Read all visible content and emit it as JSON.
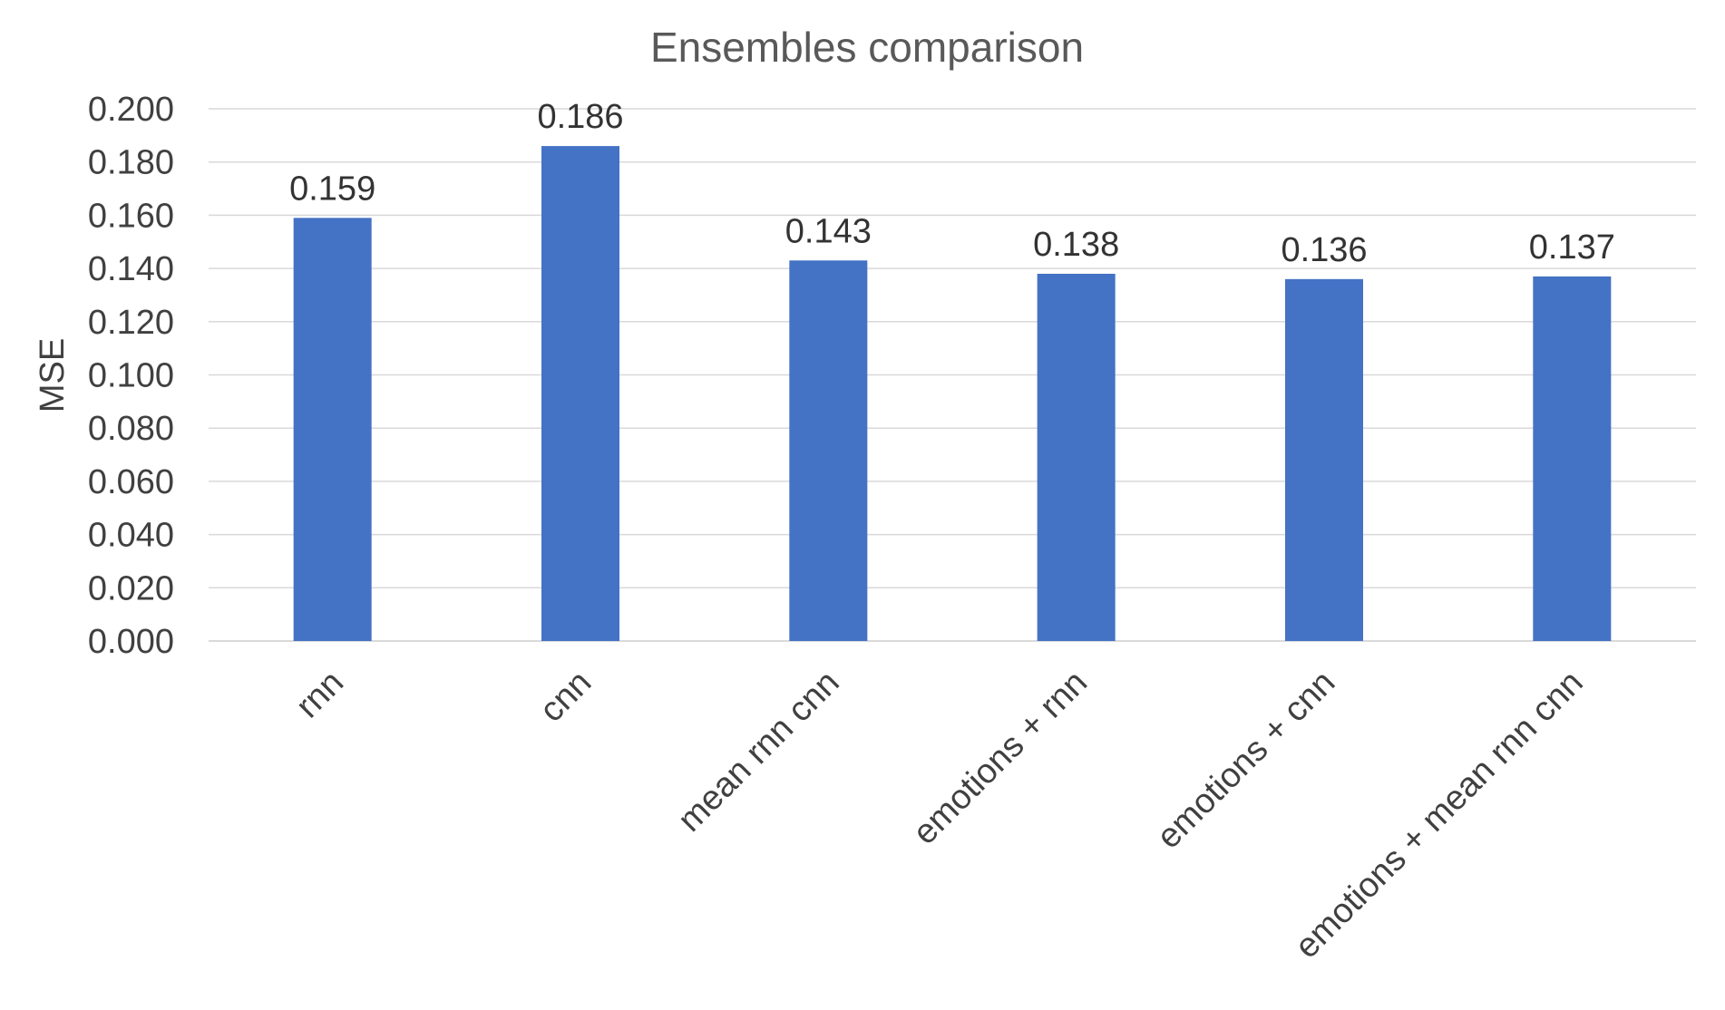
{
  "chart_data": {
    "type": "bar",
    "title": "Ensembles comparison",
    "xlabel": "",
    "ylabel": "MSE",
    "ylim": [
      0,
      0.2
    ],
    "y_ticks": [
      "0.000",
      "0.020",
      "0.040",
      "0.060",
      "0.080",
      "0.100",
      "0.120",
      "0.140",
      "0.160",
      "0.180",
      "0.200"
    ],
    "categories": [
      "rnn",
      "cnn",
      "mean rnn  cnn",
      "emotions + rnn",
      "emotions + cnn",
      "emotions + mean rnn cnn"
    ],
    "values": [
      0.159,
      0.186,
      0.143,
      0.138,
      0.136,
      0.137
    ],
    "data_labels": [
      "0.159",
      "0.186",
      "0.143",
      "0.138",
      "0.136",
      "0.137"
    ],
    "grid": true,
    "legend": "none",
    "bar_color": "#4472C4"
  }
}
